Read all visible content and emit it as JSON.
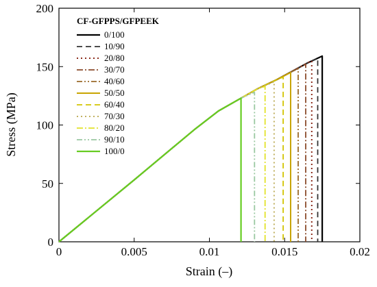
{
  "chart_data": {
    "type": "line",
    "title": "",
    "xlabel": "Strain (–)",
    "ylabel": "Stress (MPa)",
    "xlim": [
      0,
      0.02
    ],
    "ylim": [
      0,
      200
    ],
    "xticks": [
      0,
      0.005,
      0.01,
      0.015,
      0.02
    ],
    "xtick_labels": [
      "0",
      "0.005",
      "0.01",
      "0.015",
      "0.02"
    ],
    "yticks": [
      0,
      50,
      100,
      150,
      200
    ],
    "ytick_labels": [
      "0",
      "50",
      "100",
      "150",
      "200"
    ],
    "grid": false,
    "legend_title": "CF-GFPPS/GFPEEK",
    "legend_position": "top-left",
    "common_path": [
      [
        0,
        0
      ],
      [
        0.005,
        53
      ],
      [
        0.009,
        96
      ],
      [
        0.0106,
        112
      ],
      [
        0.0121,
        123
      ],
      [
        0.0132,
        131
      ],
      [
        0.0145,
        139
      ],
      [
        0.0155,
        146
      ],
      [
        0.0165,
        153
      ],
      [
        0.0175,
        159
      ]
    ],
    "series": [
      {
        "name": "0/100",
        "color": "#000000",
        "dash": "solid",
        "width": 2.2,
        "failure_strain": 0.0175,
        "peak_stress": 159
      },
      {
        "name": "10/90",
        "color": "#333333",
        "dash": "8,5",
        "width": 1.8,
        "failure_strain": 0.0172,
        "peak_stress": 157
      },
      {
        "name": "20/80",
        "color": "#8b2b1a",
        "dash": "2,4",
        "width": 2.0,
        "failure_strain": 0.0168,
        "peak_stress": 155
      },
      {
        "name": "30/70",
        "color": "#8a4a2a",
        "dash": "9,3,2,3",
        "width": 1.8,
        "failure_strain": 0.0164,
        "peak_stress": 152
      },
      {
        "name": "40/60",
        "color": "#9a6a2a",
        "dash": "8,3,2,3,2,3",
        "width": 1.8,
        "failure_strain": 0.0159,
        "peak_stress": 148
      },
      {
        "name": "50/50",
        "color": "#c8a400",
        "dash": "solid",
        "width": 2.0,
        "failure_strain": 0.0154,
        "peak_stress": 145
      },
      {
        "name": "60/40",
        "color": "#d2c400",
        "dash": "8,5",
        "width": 1.8,
        "failure_strain": 0.0149,
        "peak_stress": 141
      },
      {
        "name": "70/30",
        "color": "#c0b060",
        "dash": "2,4",
        "width": 2.0,
        "failure_strain": 0.0143,
        "peak_stress": 137
      },
      {
        "name": "80/20",
        "color": "#e2e22a",
        "dash": "9,3,2,3",
        "width": 1.8,
        "failure_strain": 0.0137,
        "peak_stress": 133
      },
      {
        "name": "90/10",
        "color": "#9ac8a0",
        "dash": "8,3,2,3,2,3",
        "width": 1.8,
        "failure_strain": 0.013,
        "peak_stress": 128
      },
      {
        "name": "100/0",
        "color": "#66cc22",
        "dash": "solid",
        "width": 2.2,
        "failure_strain": 0.0121,
        "peak_stress": 123
      }
    ]
  }
}
